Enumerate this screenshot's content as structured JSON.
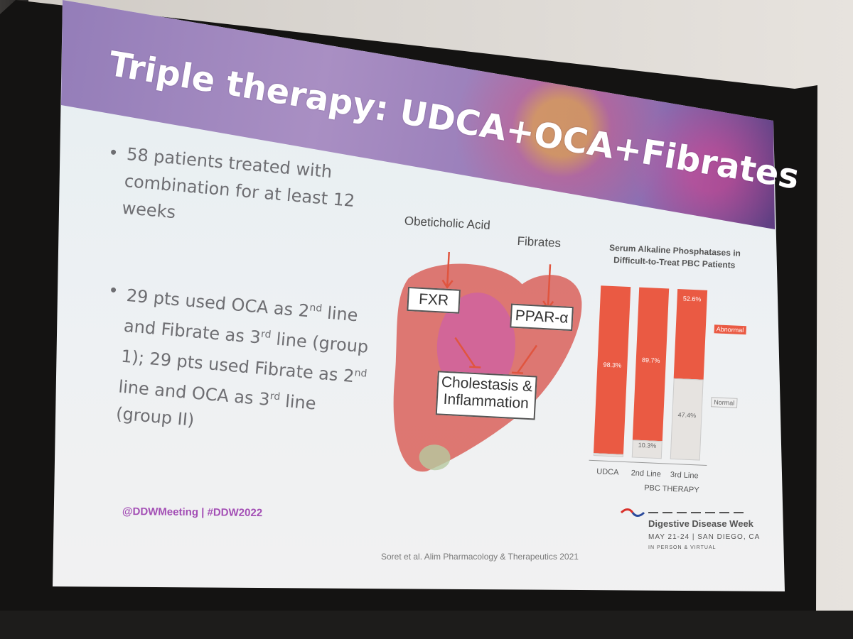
{
  "slide": {
    "title": "Triple therapy: UDCA+OCA+Fibrates",
    "bullets": [
      "58 patients treated with combination for at least 12 weeks",
      "29 pts used OCA as 2nd line and Fibrate as 3rd line (group 1); 29 pts used Fibrate as 2nd line and OCA as 3rd line (group II)"
    ],
    "bullet_marker": "•",
    "bullet2_parts": {
      "p1": "29 pts used OCA as 2",
      "s1": "nd",
      "p2": " line and Fibrate as 3",
      "s2": "rd",
      "p3": " line (group 1); 29 pts used Fibrate as 2",
      "s3": "nd",
      "p4": " line and OCA as 3",
      "s4": "rd",
      "p5": " line (group II)"
    },
    "footer_tag": "@DDWMeeting | #DDW2022",
    "citation": "Soret et al. Alim Pharmacology & Therapeutics 2021"
  },
  "diagram": {
    "label_oca": "Obeticholic Acid",
    "label_fibrates": "Fibrates",
    "box_fxr": "FXR",
    "box_ppar": "PPAR-α",
    "box_outcome_line1": "Cholestasis &",
    "box_outcome_line2": "Inflammation",
    "colors": {
      "liver": "#d9625a",
      "arrow": "#e0553f",
      "accent": "#c85ab8"
    }
  },
  "chart_data": {
    "type": "bar",
    "title": "Serum Alkaline Phosphatases in Difficult-to-Treat PBC Patients",
    "categories": [
      "UDCA",
      "2nd Line",
      "3rd Line"
    ],
    "xlabel": "PBC THERAPY",
    "series": [
      {
        "name": "Abnormal",
        "values": [
          98.3,
          89.7,
          52.6
        ],
        "labels": [
          "98.3%",
          "89.7%",
          "52.6%"
        ],
        "color": "#ea5a43"
      },
      {
        "name": "Normal",
        "values": [
          1.7,
          10.3,
          47.4
        ],
        "labels": [
          "",
          "10.3%",
          "47.4%"
        ],
        "color": "#e6e3e0"
      }
    ],
    "stacked": true,
    "ylim": [
      0,
      100
    ]
  },
  "brand": {
    "name": "Digestive Disease Week",
    "dates": "MAY 21-24 | SAN DIEGO, CA",
    "mode": "IN PERSON & VIRTUAL"
  }
}
